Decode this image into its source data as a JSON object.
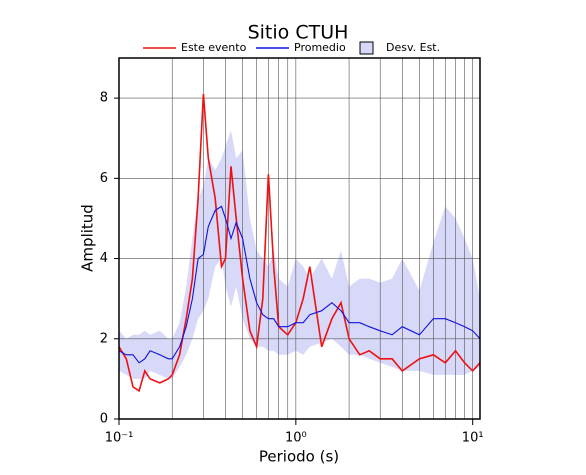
{
  "chart_data": {
    "type": "line",
    "title": "Sitio CTUH",
    "xlabel": "Periodo (s)",
    "ylabel": "Amplitud",
    "xscale": "log",
    "grid": true,
    "legend": "top",
    "xlim": [
      0.1,
      11
    ],
    "ylim": [
      0,
      9
    ],
    "xticks": [
      {
        "value": 0.1,
        "label": "10⁻¹"
      },
      {
        "value": 1,
        "label": "10⁰"
      },
      {
        "value": 10,
        "label": "10¹"
      }
    ],
    "yticks": [
      0,
      2,
      4,
      6,
      8
    ],
    "x": [
      0.1,
      0.11,
      0.12,
      0.13,
      0.14,
      0.15,
      0.17,
      0.19,
      0.2,
      0.22,
      0.24,
      0.26,
      0.28,
      0.3,
      0.32,
      0.35,
      0.38,
      0.4,
      0.43,
      0.46,
      0.5,
      0.55,
      0.6,
      0.65,
      0.7,
      0.75,
      0.8,
      0.9,
      1.0,
      1.1,
      1.2,
      1.4,
      1.6,
      1.8,
      2.0,
      2.3,
      2.6,
      3.0,
      3.5,
      4,
      5,
      6,
      7,
      8,
      9,
      10,
      11
    ],
    "series": [
      {
        "name": "Este evento",
        "color": "#ee1111",
        "values": [
          1.8,
          1.5,
          0.8,
          0.7,
          1.2,
          1.0,
          0.9,
          1.0,
          1.1,
          1.6,
          2.5,
          3.5,
          5.5,
          8.1,
          6.5,
          5.5,
          3.8,
          4.0,
          6.3,
          5.0,
          3.5,
          2.2,
          1.8,
          3.0,
          6.1,
          3.8,
          2.3,
          2.1,
          2.4,
          3.0,
          3.8,
          1.8,
          2.5,
          2.9,
          2.0,
          1.6,
          1.7,
          1.5,
          1.5,
          1.2,
          1.5,
          1.6,
          1.4,
          1.7,
          1.4,
          1.2,
          1.4
        ]
      },
      {
        "name": "Promedio",
        "color": "#1111dd",
        "values": [
          1.7,
          1.6,
          1.6,
          1.4,
          1.5,
          1.7,
          1.6,
          1.5,
          1.5,
          1.8,
          2.3,
          3.0,
          4.0,
          4.1,
          4.8,
          5.2,
          5.3,
          5.0,
          4.5,
          4.9,
          4.5,
          3.5,
          2.9,
          2.6,
          2.5,
          2.5,
          2.3,
          2.3,
          2.4,
          2.4,
          2.6,
          2.7,
          2.9,
          2.7,
          2.4,
          2.4,
          2.3,
          2.2,
          2.1,
          2.3,
          2.1,
          2.5,
          2.5,
          2.4,
          2.3,
          2.2,
          2.0
        ]
      },
      {
        "name": "Desv. Est.",
        "color": "#d8d8f8",
        "upper": [
          2.2,
          2.0,
          2.1,
          2.1,
          2.2,
          2.1,
          2.2,
          2.0,
          2.0,
          2.4,
          3.3,
          4.5,
          5.5,
          5.8,
          6.5,
          6.2,
          6.5,
          6.8,
          7.2,
          6.5,
          6.7,
          5.0,
          4.2,
          4.0,
          3.8,
          4.2,
          3.5,
          3.3,
          4.0,
          3.8,
          3.5,
          4.0,
          3.5,
          4.2,
          3.3,
          3.5,
          3.5,
          3.4,
          3.5,
          4.0,
          3.2,
          4.4,
          5.3,
          5.0,
          4.5,
          4.0,
          3.0
        ],
        "lower": [
          1.2,
          1.1,
          1.0,
          1.0,
          1.0,
          1.2,
          1.1,
          1.0,
          1.0,
          1.3,
          1.6,
          2.0,
          2.5,
          2.7,
          3.0,
          3.8,
          4.0,
          3.3,
          2.8,
          3.3,
          2.5,
          2.0,
          1.8,
          1.8,
          1.7,
          1.7,
          1.6,
          1.6,
          1.7,
          1.6,
          1.8,
          1.9,
          2.0,
          1.8,
          1.6,
          1.6,
          1.5,
          1.4,
          1.3,
          1.2,
          1.2,
          1.1,
          1.1,
          1.1,
          1.1,
          1.2,
          1.3
        ]
      }
    ]
  }
}
